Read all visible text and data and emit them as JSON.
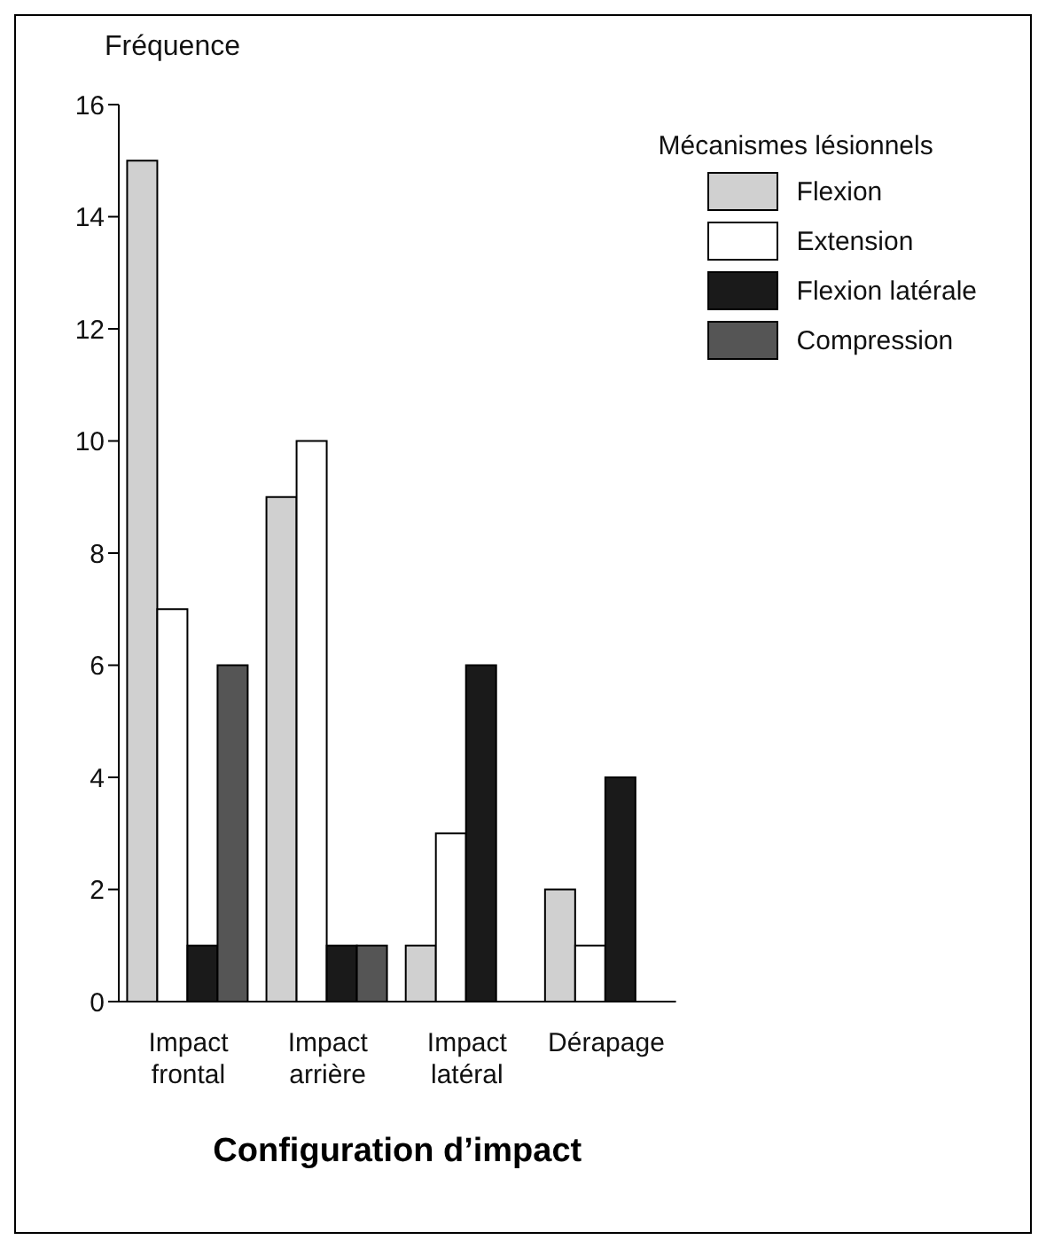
{
  "chart_data": {
    "type": "bar",
    "ylabel": "Fréquence",
    "xlabel": "Configuration d’impact",
    "legend_title": "Mécanismes lésionnels",
    "categories": [
      "Impact frontal",
      "Impact arrière",
      "Impact latéral",
      "Dérapage"
    ],
    "series": [
      {
        "name": "Flexion",
        "color": "#d0d0d0",
        "values": [
          15,
          9,
          1,
          2
        ]
      },
      {
        "name": "Extension",
        "color": "#ffffff",
        "values": [
          7,
          10,
          3,
          1
        ]
      },
      {
        "name": "Flexion latérale",
        "color": "#1a1a1a",
        "values": [
          1,
          1,
          6,
          4
        ]
      },
      {
        "name": "Compression",
        "color": "#555555",
        "values": [
          6,
          1,
          null,
          null
        ]
      }
    ],
    "ylim": [
      0,
      16
    ],
    "yticks": [
      0,
      2,
      4,
      6,
      8,
      10,
      12,
      14,
      16
    ],
    "grid": false,
    "legend": "top right"
  }
}
